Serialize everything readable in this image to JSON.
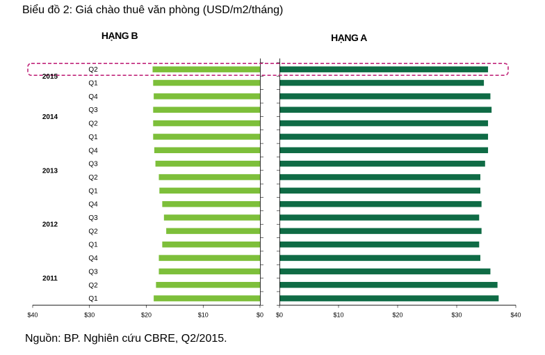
{
  "title": "Biểu đồ 2: Giá chào thuê văn phòng (USD/m2/tháng)",
  "source": "Nguồn: BP. Nghiên cứu CBRE, Q2/2015.",
  "chart_data": {
    "type": "bar",
    "orientation": "horizontal",
    "layout": "back-to-back",
    "categories": [
      {
        "quarter": "Q2",
        "year": "2015"
      },
      {
        "quarter": "Q1",
        "year": "2015"
      },
      {
        "quarter": "Q4",
        "year": "2014"
      },
      {
        "quarter": "Q3",
        "year": "2014"
      },
      {
        "quarter": "Q2",
        "year": "2014"
      },
      {
        "quarter": "Q1",
        "year": "2014"
      },
      {
        "quarter": "Q4",
        "year": "2013"
      },
      {
        "quarter": "Q3",
        "year": "2013"
      },
      {
        "quarter": "Q2",
        "year": "2013"
      },
      {
        "quarter": "Q1",
        "year": "2013"
      },
      {
        "quarter": "Q4",
        "year": "2012"
      },
      {
        "quarter": "Q3",
        "year": "2012"
      },
      {
        "quarter": "Q2",
        "year": "2012"
      },
      {
        "quarter": "Q1",
        "year": "2012"
      },
      {
        "quarter": "Q4",
        "year": "2011"
      },
      {
        "quarter": "Q3",
        "year": "2011"
      },
      {
        "quarter": "Q2",
        "year": "2011"
      },
      {
        "quarter": "Q1",
        "year": "2011"
      }
    ],
    "year_labels": [
      {
        "year": "2015",
        "quarters": [
          "Q1",
          "Q2"
        ]
      },
      {
        "year": "2014",
        "quarters": [
          "Q1",
          "Q2",
          "Q3",
          "Q4"
        ]
      },
      {
        "year": "2013",
        "quarters": [
          "Q1",
          "Q2",
          "Q3",
          "Q4"
        ]
      },
      {
        "year": "2012",
        "quarters": [
          "Q1",
          "Q2",
          "Q3",
          "Q4"
        ]
      },
      {
        "year": "2011",
        "quarters": [
          "Q1",
          "Q2",
          "Q3",
          "Q4"
        ]
      }
    ],
    "series": [
      {
        "name": "HẠNG B",
        "color": "#7dbf3a",
        "values": [
          18.9,
          18.8,
          18.7,
          18.8,
          18.8,
          18.8,
          18.6,
          18.4,
          17.8,
          17.7,
          17.2,
          16.9,
          16.5,
          17.2,
          17.8,
          17.8,
          18.3,
          18.7
        ],
        "xlim": [
          0,
          40
        ],
        "ticks": [
          "$40",
          "$30",
          "$20",
          "$10",
          "$0"
        ]
      },
      {
        "name": "HẠNG A",
        "color": "#0f6b45",
        "values": [
          35.3,
          34.6,
          35.7,
          35.9,
          35.3,
          35.3,
          35.3,
          34.8,
          34.0,
          34.0,
          34.2,
          33.8,
          34.2,
          33.8,
          34.0,
          35.7,
          36.9,
          37.1
        ],
        "xlim": [
          0,
          40
        ],
        "ticks": [
          "$0",
          "$10",
          "$20",
          "$30",
          "$40"
        ]
      }
    ],
    "highlight": {
      "quarter": "Q2",
      "year": "2015",
      "style": "dashed",
      "color": "#c0267a"
    },
    "grid": false,
    "legend": "none"
  }
}
